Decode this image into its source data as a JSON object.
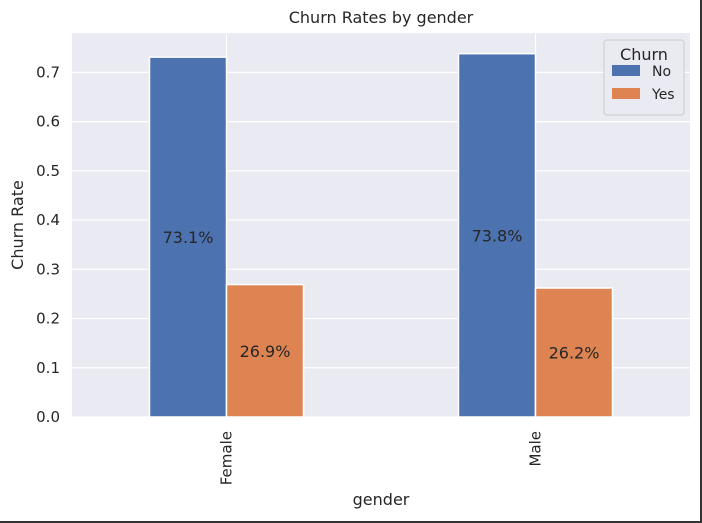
{
  "chart_data": {
    "type": "bar",
    "title": "Churn Rates by gender",
    "xlabel": "gender",
    "ylabel": "Churn Rate",
    "categories": [
      "Female",
      "Male"
    ],
    "series": [
      {
        "name": "No",
        "values": [
          0.731,
          0.738
        ],
        "labels": [
          "73.1%",
          "73.8%"
        ],
        "color": "#4c72b0"
      },
      {
        "name": "Yes",
        "values": [
          0.269,
          0.262
        ],
        "labels": [
          "26.9%",
          "26.2%"
        ],
        "color": "#dd8452"
      }
    ],
    "ylim": [
      0,
      0.78
    ],
    "yticks": [
      "0.0",
      "0.1",
      "0.2",
      "0.3",
      "0.4",
      "0.5",
      "0.6",
      "0.7"
    ],
    "grid": true,
    "legend": {
      "title": "Churn",
      "placement": "top-right"
    },
    "colors": {
      "plot_bg": "#eaeaf2",
      "grid": "#ffffff"
    }
  }
}
